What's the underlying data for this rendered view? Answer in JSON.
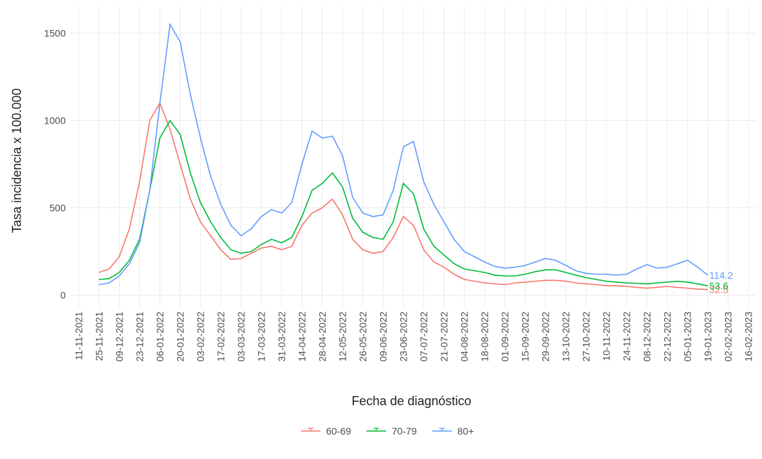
{
  "chart_data": {
    "type": "line",
    "ylabel": "Tasa incidencia x 100.000",
    "xlabel": "Fecha de diagnóstico",
    "x": [
      "25-11-2021",
      "02-12-2021",
      "09-12-2021",
      "16-12-2021",
      "23-12-2021",
      "30-12-2021",
      "06-01-2022",
      "13-01-2022",
      "20-01-2022",
      "27-01-2022",
      "03-02-2022",
      "10-02-2022",
      "17-02-2022",
      "24-02-2022",
      "03-03-2022",
      "10-03-2022",
      "17-03-2022",
      "24-03-2022",
      "31-03-2022",
      "07-04-2022",
      "14-04-2022",
      "21-04-2022",
      "28-04-2022",
      "05-05-2022",
      "12-05-2022",
      "19-05-2022",
      "26-05-2022",
      "02-06-2022",
      "09-06-2022",
      "16-06-2022",
      "23-06-2022",
      "30-06-2022",
      "07-07-2022",
      "14-07-2022",
      "21-07-2022",
      "28-07-2022",
      "04-08-2022",
      "11-08-2022",
      "18-08-2022",
      "25-08-2022",
      "01-09-2022",
      "08-09-2022",
      "15-09-2022",
      "22-09-2022",
      "29-09-2022",
      "06-10-2022",
      "13-10-2022",
      "20-10-2022",
      "27-10-2022",
      "03-11-2022",
      "10-11-2022",
      "17-11-2022",
      "24-11-2022",
      "01-12-2022",
      "08-12-2022",
      "15-12-2022",
      "22-12-2022",
      "29-12-2022",
      "05-01-2023",
      "12-01-2023",
      "19-01-2023"
    ],
    "series": [
      {
        "name": "60-69",
        "color": "#F8766D",
        "values": [
          130,
          150,
          220,
          380,
          650,
          1000,
          1100,
          950,
          750,
          550,
          420,
          340,
          260,
          205,
          210,
          240,
          270,
          280,
          260,
          280,
          400,
          470,
          500,
          550,
          460,
          320,
          260,
          240,
          250,
          330,
          450,
          400,
          260,
          190,
          160,
          120,
          90,
          80,
          70,
          65,
          60,
          70,
          75,
          80,
          85,
          85,
          80,
          70,
          65,
          60,
          55,
          55,
          50,
          45,
          40,
          45,
          50,
          45,
          40,
          35,
          32.5
        ]
      },
      {
        "name": "70-79",
        "color": "#00BA38",
        "values": [
          90,
          95,
          130,
          200,
          320,
          600,
          900,
          1000,
          920,
          700,
          530,
          420,
          330,
          260,
          240,
          250,
          290,
          320,
          300,
          330,
          450,
          600,
          640,
          700,
          620,
          440,
          360,
          330,
          320,
          420,
          640,
          580,
          380,
          280,
          230,
          180,
          150,
          140,
          130,
          115,
          110,
          110,
          120,
          135,
          145,
          145,
          130,
          115,
          100,
          90,
          80,
          75,
          70,
          68,
          65,
          70,
          75,
          80,
          75,
          65,
          53.6
        ]
      },
      {
        "name": "80+",
        "color": "#619CFF",
        "values": [
          60,
          70,
          110,
          180,
          300,
          600,
          1100,
          1550,
          1450,
          1150,
          900,
          680,
          520,
          400,
          340,
          380,
          450,
          490,
          470,
          530,
          750,
          940,
          900,
          910,
          800,
          560,
          470,
          450,
          460,
          600,
          850,
          880,
          650,
          520,
          420,
          320,
          250,
          220,
          190,
          165,
          155,
          160,
          170,
          190,
          210,
          200,
          170,
          140,
          125,
          120,
          120,
          115,
          120,
          150,
          175,
          155,
          160,
          180,
          200,
          160,
          114.2
        ]
      }
    ],
    "xlim": [
      "05-11-2021",
      "21-02-2023"
    ],
    "xticks": [
      "11-11-2021",
      "25-11-2021",
      "09-12-2021",
      "23-12-2021",
      "06-01-2022",
      "20-01-2022",
      "03-02-2022",
      "17-02-2022",
      "03-03-2022",
      "17-03-2022",
      "31-03-2022",
      "14-04-2022",
      "28-04-2022",
      "12-05-2022",
      "26-05-2022",
      "09-06-2022",
      "23-06-2022",
      "07-07-2022",
      "21-07-2022",
      "04-08-2022",
      "18-08-2022",
      "01-09-2022",
      "15-09-2022",
      "29-09-2022",
      "13-10-2022",
      "27-10-2022",
      "10-11-2022",
      "24-11-2022",
      "08-12-2022",
      "22-12-2022",
      "05-01-2023",
      "19-01-2023",
      "02-02-2023",
      "16-02-2023"
    ],
    "ylim": [
      -70,
      1650
    ],
    "yticks": [
      0,
      500,
      1000,
      1500
    ],
    "grid": true,
    "legend": "bottom"
  }
}
